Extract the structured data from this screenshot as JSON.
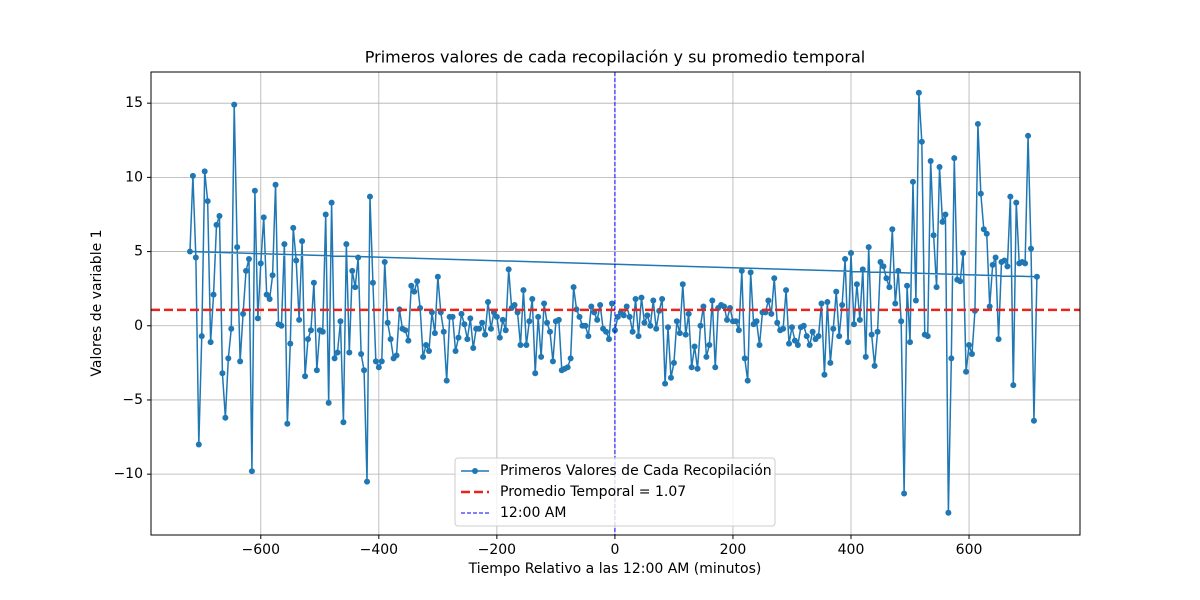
{
  "chart_data": {
    "type": "line",
    "title": "Primeros valores de cada recopilación y su promedio temporal",
    "xlabel": "Tiempo Relativo a las 12:00 AM (minutos)",
    "ylabel": "Valores de variable 1",
    "series": [
      {
        "name": "Primeros Valores de Cada Recopilación",
        "color": "#1f77b4",
        "x": [
          0,
          5,
          10,
          15,
          20,
          25,
          30,
          35,
          40,
          45,
          50,
          55,
          60,
          65,
          70,
          75,
          80,
          85,
          90,
          95,
          100,
          105,
          110,
          115,
          120,
          125,
          130,
          135,
          140,
          145,
          150,
          155,
          160,
          165,
          170,
          175,
          180,
          185,
          190,
          195,
          200,
          205,
          210,
          215,
          220,
          225,
          230,
          235,
          240,
          245,
          250,
          255,
          260,
          265,
          270,
          275,
          280,
          285,
          290,
          295,
          300,
          305,
          310,
          315,
          320,
          325,
          330,
          335,
          340,
          345,
          350,
          355,
          360,
          365,
          370,
          375,
          380,
          385,
          390,
          395,
          400,
          405,
          410,
          415,
          420,
          425,
          430,
          435,
          440,
          445,
          450,
          455,
          460,
          465,
          470,
          475,
          480,
          485,
          490,
          495,
          500,
          505,
          510,
          515,
          520,
          525,
          530,
          535,
          540,
          545,
          550,
          555,
          560,
          565,
          570,
          575,
          580,
          585,
          590,
          595,
          600,
          605,
          610,
          615,
          620,
          625,
          630,
          635,
          640,
          645,
          650,
          655,
          660,
          665,
          670,
          675,
          680,
          685,
          690,
          695,
          700,
          705,
          710,
          715,
          -720,
          -715,
          -710,
          -705,
          -700,
          -695,
          -690,
          -685,
          -680,
          -675,
          -670,
          -665,
          -660,
          -655,
          -650,
          -645,
          -640,
          -635,
          -630,
          -625,
          -620,
          -615,
          -610,
          -605,
          -600,
          -595,
          -590,
          -585,
          -580,
          -575,
          -570,
          -565,
          -560,
          -555,
          -550,
          -545,
          -540,
          -535,
          -530,
          -525,
          -520,
          -515,
          -510,
          -505,
          -500,
          -495,
          -490,
          -485,
          -480,
          -475,
          -470,
          -465,
          -460,
          -455,
          -450,
          -445,
          -440,
          -435,
          -430,
          -425,
          -420,
          -415,
          -410,
          -405,
          -400,
          -395,
          -390,
          -385,
          -380,
          -375,
          -370,
          -365,
          -360,
          -355,
          -350,
          -345,
          -340,
          -335,
          -330,
          -325,
          -320,
          -315,
          -310,
          -305,
          -300,
          -295,
          -290,
          -285,
          -280,
          -275,
          -270,
          -265,
          -260,
          -255,
          -250,
          -245,
          -240,
          -235,
          -230,
          -225,
          -220,
          -215,
          -210,
          -205,
          -200,
          -195,
          -190,
          -185,
          -180,
          -175,
          -170,
          -165,
          -160,
          -155,
          -150,
          -145,
          -140,
          -135,
          -130,
          -125,
          -120,
          -115,
          -110,
          -105,
          -100,
          -95,
          -90,
          -85,
          -80,
          -75,
          -70,
          -65,
          -60,
          -55,
          -50,
          -45,
          -40,
          -35,
          -30,
          -25,
          -20,
          -15,
          -10,
          -5
        ],
        "values": [
          -0.3,
          0.6,
          0.9,
          0.7,
          1.3,
          0.6,
          -0.4,
          1.8,
          -0.7,
          1.9,
          0.2,
          0.7,
          0.0,
          1.7,
          -0.2,
          1.0,
          1.8,
          -3.9,
          -0.1,
          -3.5,
          -2.5,
          0.3,
          -0.5,
          2.8,
          -0.6,
          0.8,
          -2.8,
          -1.4,
          -2.9,
          0.0,
          1.3,
          -2.1,
          -1.3,
          1.7,
          -2.8,
          1.2,
          1.4,
          1.3,
          0.4,
          1.2,
          0.3,
          0.3,
          -0.3,
          3.7,
          -2.2,
          -3.7,
          3.6,
          0.1,
          0.3,
          -1.3,
          0.9,
          0.9,
          1.7,
          0.8,
          3.2,
          0.2,
          -0.3,
          -0.2,
          2.4,
          -1.2,
          -0.1,
          -1.0,
          -1.3,
          -0.1,
          0.0,
          -0.7,
          -1.3,
          -0.4,
          -0.9,
          -0.7,
          1.5,
          -3.3,
          1.6,
          -2.5,
          -0.2,
          2.3,
          -0.7,
          1.4,
          4.5,
          -1.1,
          4.9,
          0.1,
          2.8,
          0.4,
          3.8,
          -2.1,
          5.3,
          -0.6,
          -2.7,
          -0.4,
          4.3,
          4.0,
          3.2,
          2.6,
          6.5,
          1.5,
          3.7,
          0.3,
          -11.3,
          2.7,
          -1.1,
          9.7,
          1.7,
          15.7,
          12.4,
          -0.6,
          -0.7,
          11.1,
          6.1,
          2.6,
          10.7,
          7.0,
          7.5,
          -12.6,
          -2.2,
          11.3,
          3.1,
          3.0,
          4.9,
          -3.1,
          -1.3,
          -1.9,
          1.0,
          13.6,
          8.9,
          6.5,
          6.2,
          1.3,
          4.1,
          4.6,
          -0.9,
          4.3,
          4.4,
          4.0,
          8.7,
          -4.0,
          8.3,
          4.2,
          4.3,
          4.2,
          12.8,
          5.2,
          -6.4,
          3.3,
          5.0,
          10.1,
          4.6,
          -8.0,
          -0.7,
          10.4,
          8.4,
          -1.1,
          2.1,
          6.8,
          7.4,
          -3.2,
          -6.2,
          -2.2,
          -0.2,
          14.9,
          5.3,
          -2.4,
          0.8,
          3.7,
          4.5,
          -9.8,
          9.1,
          0.5,
          4.2,
          7.3,
          2.1,
          1.8,
          3.4,
          9.5,
          0.1,
          0.0,
          5.5,
          -6.6,
          -1.2,
          6.6,
          4.4,
          0.4,
          5.7,
          -3.4,
          -0.9,
          -0.3,
          2.9,
          -3.0,
          -0.3,
          -0.4,
          7.5,
          -5.2,
          8.3,
          -2.2,
          -1.8,
          0.3,
          -6.5,
          5.5,
          -1.8,
          3.7,
          2.6,
          4.6,
          -1.9,
          -3.0,
          -10.5,
          8.7,
          2.9,
          -2.4,
          -2.8,
          -2.4,
          4.3,
          0.2,
          -0.9,
          -2.2,
          -2.0,
          1.1,
          -0.2,
          -0.3,
          -1.0,
          2.7,
          2.3,
          3.0,
          1.2,
          -2.1,
          -1.3,
          -1.7,
          0.9,
          -0.5,
          3.3,
          0.9,
          -0.4,
          -3.7,
          0.6,
          0.6,
          -1.7,
          -0.8,
          0.8,
          0.1,
          -0.9,
          0.5,
          -1.5,
          -0.2,
          -0.2,
          0.2,
          -0.6,
          1.6,
          -0.2,
          0.9,
          0.6,
          -0.8,
          0.4,
          -0.3,
          3.8,
          1.2,
          1.4,
          0.9,
          -1.3,
          2.4,
          -1.3,
          0.3,
          1.8,
          -3.2,
          0.6,
          -2.1,
          1.5,
          0.2,
          -0.4,
          -2.4,
          0.3,
          0.4,
          -3.0,
          -2.9,
          -2.8,
          -2.2,
          2.6,
          1.1,
          0.6,
          0.0,
          0.0,
          -0.7,
          1.3,
          0.9,
          0.4,
          1.4,
          -0.2,
          -0.4,
          -0.9,
          1.5
        ]
      }
    ],
    "hline": {
      "value": 1.07,
      "name": "Promedio Temporal = 1.07",
      "color": "#e8251c"
    },
    "vline": {
      "value": 0,
      "name": "12:00 AM",
      "color": "#0000ff"
    },
    "xlim": [
      -786,
      788
    ],
    "ylim": [
      -14.1,
      17.1
    ],
    "xticks": [
      {
        "value": -600,
        "label": "−600"
      },
      {
        "value": -400,
        "label": "−400"
      },
      {
        "value": -200,
        "label": "−200"
      },
      0,
      200,
      400,
      600
    ],
    "yticks": [
      {
        "value": -10,
        "label": "−10"
      },
      {
        "value": -5,
        "label": "−5"
      },
      0,
      5,
      10,
      15
    ],
    "grid": true,
    "legend": "lower center"
  }
}
